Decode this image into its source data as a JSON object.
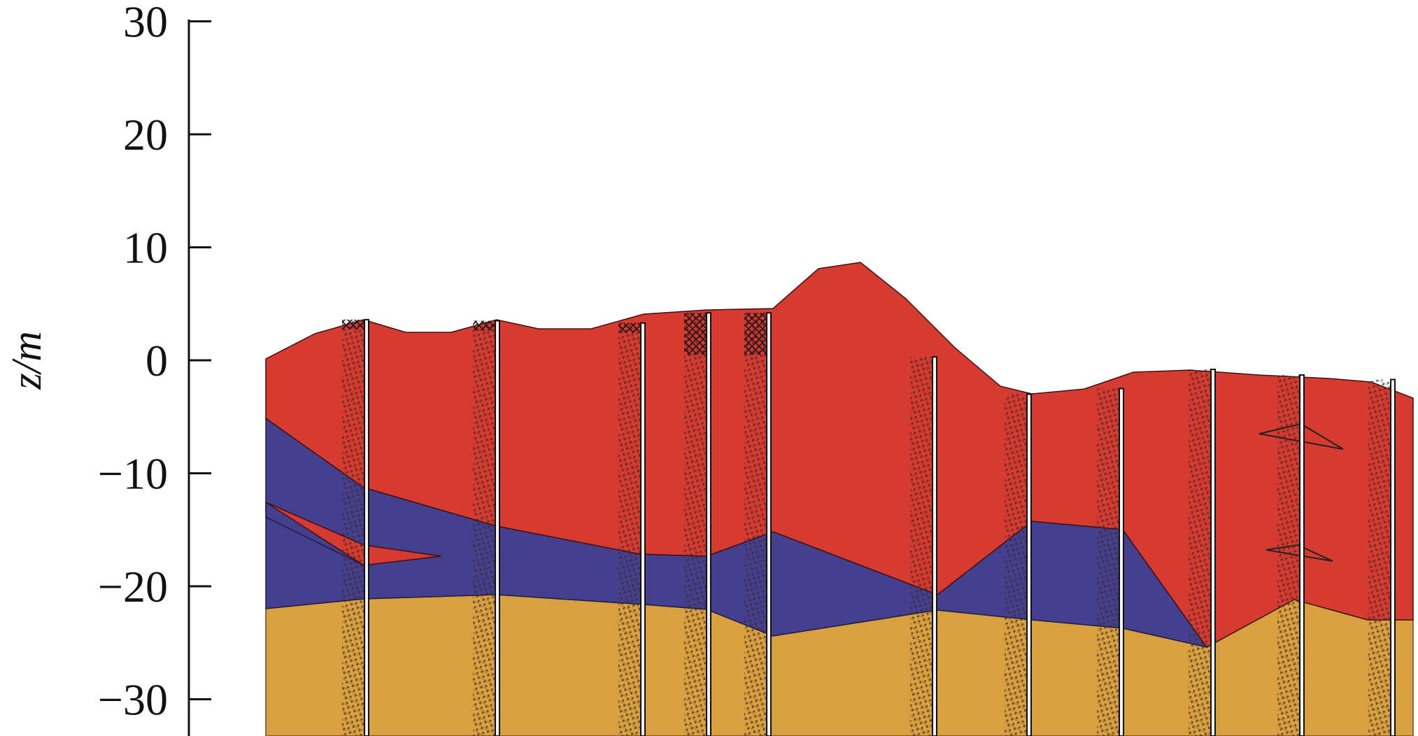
{
  "chart_data": {
    "type": "area",
    "ylabel": "z/m",
    "ylim": [
      -33,
      30
    ],
    "y_ticks": [
      30,
      20,
      10,
      0,
      -10,
      -20,
      -30
    ],
    "y_tick_labels": [
      "30",
      "20",
      "10",
      "0",
      "−10",
      "−20",
      "−30"
    ],
    "layer_colors": {
      "top": "#d63a30",
      "middle": "#463f8f",
      "bottom": "#d9a040"
    },
    "boreholes": [
      {
        "top": 3.6
      },
      {
        "top": 3.5
      },
      {
        "top": 3.3
      },
      {
        "top": 4.2
      },
      {
        "top": 4.2
      },
      {
        "top": 0.3
      },
      {
        "top": -3.0
      },
      {
        "top": -2.5
      },
      {
        "top": -0.8
      },
      {
        "top": -1.3
      },
      {
        "top": -1.7
      }
    ]
  }
}
